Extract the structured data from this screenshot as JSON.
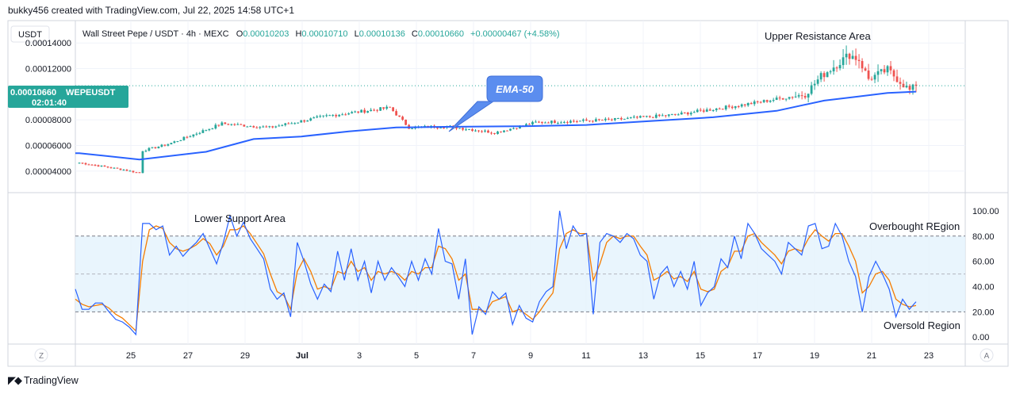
{
  "header": {
    "credit": "bukky456 created with TradingView.com, Jul 22, 2025 14:58 UTC+1",
    "currency": "USDT",
    "symbol_line": "Wall Street Pepe / USDT · 4h · MEXC",
    "ohlc": {
      "o_label": "O",
      "o": "0.00010203",
      "h_label": "H",
      "h": "0.00010710",
      "l_label": "L",
      "l": "0.00010136",
      "c_label": "C",
      "c": "0.00010660",
      "change": "+0.00000467 (+4.58%)"
    }
  },
  "price_tag": {
    "price": "0.00010660",
    "symbol": "WEPEUSDT",
    "countdown": "02:01:40"
  },
  "colors": {
    "up": "#26a69a",
    "down": "#ef5350",
    "ema": "#2962ff",
    "rsi_fast": "#2962ff",
    "rsi_slow": "#f57c00",
    "band": "#e3f2fd",
    "tag": "#26a69a",
    "callout": "#5b8def"
  },
  "footer": {
    "z_label": "Z",
    "a_label": "A",
    "logo_text": "TradingView"
  },
  "chart_data": [
    {
      "type": "candlestick",
      "title": "Wall Street Pepe / USDT · 4h · MEXC",
      "y_ticks": [
        "0.00014000",
        "0.00012000",
        "0.00008000",
        "0.00006000",
        "0.00004000"
      ],
      "ylim": [
        2.5e-05,
        0.000155
      ],
      "x_ticks": [
        "25",
        "27",
        "29",
        "Jul",
        "3",
        "5",
        "7",
        "9",
        "11",
        "13",
        "15",
        "17",
        "19",
        "21",
        "23"
      ],
      "anchors": [
        {
          "x": 0,
          "y": 4.65e-05
        },
        {
          "x": 14,
          "y": 4.1e-05
        },
        {
          "x": 19,
          "y": 3.85e-05
        },
        {
          "x": 20,
          "y": 5.6e-05
        },
        {
          "x": 28,
          "y": 6.1e-05
        },
        {
          "x": 45,
          "y": 7.7e-05
        },
        {
          "x": 60,
          "y": 7.4e-05
        },
        {
          "x": 78,
          "y": 8.3e-05
        },
        {
          "x": 98,
          "y": 8.95e-05
        },
        {
          "x": 104,
          "y": 7.4e-05
        },
        {
          "x": 116,
          "y": 7.5e-05
        },
        {
          "x": 131,
          "y": 7e-05
        },
        {
          "x": 144,
          "y": 7.8e-05
        },
        {
          "x": 168,
          "y": 8e-05
        },
        {
          "x": 188,
          "y": 8.4e-05
        },
        {
          "x": 210,
          "y": 9.2e-05
        },
        {
          "x": 229,
          "y": 0.0001
        },
        {
          "x": 234,
          "y": 0.000114
        },
        {
          "x": 243,
          "y": 0.000131
        },
        {
          "x": 246,
          "y": 0.000127
        },
        {
          "x": 249,
          "y": 0.000112
        },
        {
          "x": 255,
          "y": 0.000119
        },
        {
          "x": 262,
          "y": 0.000103
        },
        {
          "x": 264,
          "y": 0.0001066
        }
      ],
      "ema_label": "EMA-50",
      "ema": [
        {
          "x": 0,
          "y": 5.4e-05
        },
        {
          "x": 19,
          "y": 4.9e-05
        },
        {
          "x": 40,
          "y": 5.5e-05
        },
        {
          "x": 55,
          "y": 6.5e-05
        },
        {
          "x": 70,
          "y": 6.7e-05
        },
        {
          "x": 85,
          "y": 7.1e-05
        },
        {
          "x": 100,
          "y": 7.4e-05
        },
        {
          "x": 115,
          "y": 7.45e-05
        },
        {
          "x": 140,
          "y": 7.5e-05
        },
        {
          "x": 160,
          "y": 7.6e-05
        },
        {
          "x": 180,
          "y": 7.9e-05
        },
        {
          "x": 200,
          "y": 8.2e-05
        },
        {
          "x": 220,
          "y": 8.7e-05
        },
        {
          "x": 235,
          "y": 9.5e-05
        },
        {
          "x": 245,
          "y": 9.8e-05
        },
        {
          "x": 255,
          "y": 0.000101
        },
        {
          "x": 264,
          "y": 0.000102
        }
      ],
      "annotations": [
        "Upper Resistance Area",
        "EMA-50"
      ]
    },
    {
      "type": "line",
      "title": "",
      "y_ticks": [
        "100.00",
        "80.00",
        "60.00",
        "40.00",
        "20.00",
        "0.00"
      ],
      "ylim": [
        -3,
        110
      ],
      "band": [
        20,
        80
      ],
      "midline": 50,
      "rsi_fast": [
        38,
        22,
        22,
        27,
        27,
        20,
        14,
        12,
        8,
        2,
        90,
        90,
        85,
        88,
        65,
        72,
        64,
        70,
        75,
        82,
        70,
        58,
        75,
        96,
        80,
        91,
        78,
        70,
        62,
        38,
        30,
        35,
        16,
        75,
        60,
        42,
        30,
        42,
        36,
        68,
        45,
        70,
        45,
        60,
        35,
        60,
        45,
        55,
        48,
        40,
        60,
        45,
        62,
        50,
        86,
        60,
        58,
        30,
        62,
        2,
        24,
        18,
        36,
        30,
        35,
        10,
        25,
        15,
        12,
        28,
        36,
        40,
        100,
        70,
        88,
        80,
        82,
        18,
        75,
        82,
        80,
        75,
        82,
        78,
        65,
        60,
        30,
        50,
        56,
        40,
        52,
        38,
        60,
        25,
        35,
        40,
        62,
        55,
        80,
        62,
        90,
        82,
        70,
        65,
        60,
        50,
        75,
        70,
        65,
        88,
        90,
        70,
        72,
        90,
        80,
        60,
        48,
        20,
        48,
        60,
        50,
        38,
        16,
        30,
        22,
        28
      ],
      "rsi_slow": [
        30,
        26,
        24,
        25,
        26,
        23,
        18,
        15,
        10,
        5,
        60,
        85,
        88,
        86,
        75,
        70,
        68,
        70,
        73,
        78,
        74,
        65,
        72,
        85,
        85,
        88,
        82,
        74,
        66,
        50,
        36,
        33,
        22,
        52,
        62,
        52,
        38,
        40,
        38,
        52,
        50,
        60,
        52,
        55,
        45,
        52,
        50,
        52,
        50,
        45,
        52,
        50,
        55,
        55,
        72,
        70,
        62,
        45,
        50,
        22,
        22,
        20,
        28,
        30,
        32,
        20,
        22,
        18,
        14,
        20,
        28,
        35,
        70,
        82,
        85,
        82,
        82,
        45,
        58,
        75,
        80,
        78,
        80,
        80,
        72,
        65,
        45,
        48,
        52,
        46,
        48,
        44,
        52,
        38,
        36,
        38,
        52,
        56,
        68,
        68,
        80,
        82,
        75,
        70,
        65,
        58,
        68,
        70,
        68,
        78,
        85,
        80,
        76,
        82,
        82,
        72,
        60,
        35,
        40,
        50,
        52,
        45,
        30,
        26,
        24,
        25
      ],
      "annotations": [
        "Lower Support Area",
        "Overbought REgion",
        "Oversold Region"
      ]
    }
  ]
}
